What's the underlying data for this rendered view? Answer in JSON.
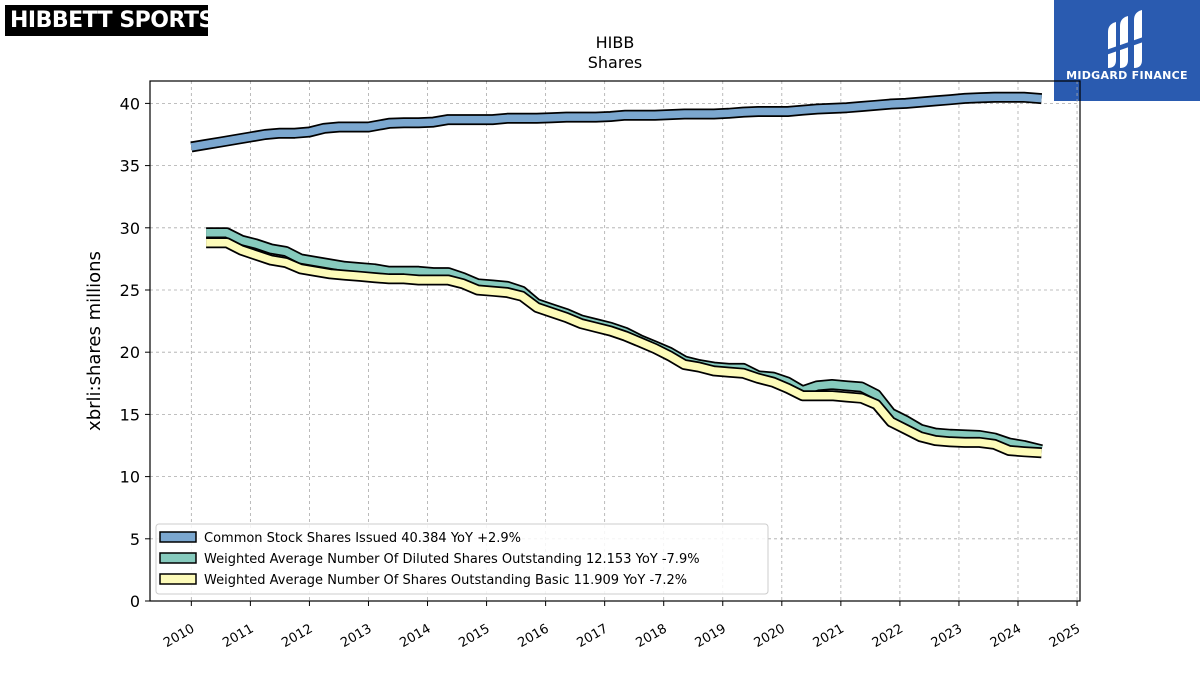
{
  "brand": {
    "name": "HIBBETT SPORTS",
    "mark": "®"
  },
  "finance_logo": {
    "name": "MIDGARD FINANCE"
  },
  "colors": {
    "common": "#7ba7cf",
    "diluted": "#86cabd",
    "basic": "#fdfbb9",
    "outline": "#000000",
    "grid": "#aaaaaa",
    "brand_bg": "#2a5bb0"
  },
  "chart_data": {
    "type": "line",
    "title": "HIBB",
    "subtitle": "Shares",
    "xlabel": "",
    "ylabel": "xbrli:shares millions",
    "xlim": [
      2009.3,
      2025.05
    ],
    "ylim": [
      0,
      41.8
    ],
    "xticks": [
      2010,
      2011,
      2012,
      2013,
      2014,
      2015,
      2016,
      2017,
      2018,
      2019,
      2020,
      2021,
      2022,
      2023,
      2024,
      2025
    ],
    "yticks": [
      0,
      5,
      10,
      15,
      20,
      25,
      30,
      35,
      40
    ],
    "grid": true,
    "legend_position": "lower-left",
    "series": [
      {
        "name": "Common Stock Shares Issued",
        "legend": "Common Stock Shares Issued  40.384 YoY +2.9%",
        "color": "#7ba7cf",
        "x": [
          2010.0,
          2010.25,
          2010.5,
          2010.75,
          2011.0,
          2011.25,
          2011.5,
          2011.75,
          2012.0,
          2012.25,
          2012.5,
          2012.75,
          2013.0,
          2013.35,
          2013.6,
          2013.85,
          2014.1,
          2014.35,
          2014.6,
          2014.85,
          2015.1,
          2015.35,
          2015.6,
          2015.85,
          2016.1,
          2016.35,
          2016.6,
          2016.85,
          2017.1,
          2017.35,
          2017.6,
          2017.85,
          2018.1,
          2018.35,
          2018.6,
          2018.85,
          2019.1,
          2019.35,
          2019.6,
          2019.85,
          2020.1,
          2020.35,
          2020.6,
          2020.85,
          2021.1,
          2021.35,
          2021.6,
          2021.85,
          2022.1,
          2022.35,
          2022.6,
          2022.85,
          2023.1,
          2023.35,
          2023.6,
          2023.85,
          2024.1,
          2024.4
        ],
        "values": [
          36.5,
          36.7,
          36.9,
          37.1,
          37.3,
          37.5,
          37.6,
          37.6,
          37.7,
          38.0,
          38.1,
          38.1,
          38.1,
          38.4,
          38.45,
          38.45,
          38.5,
          38.7,
          38.7,
          38.7,
          38.7,
          38.8,
          38.8,
          38.8,
          38.85,
          38.9,
          38.9,
          38.9,
          38.95,
          39.05,
          39.05,
          39.05,
          39.1,
          39.15,
          39.15,
          39.15,
          39.2,
          39.3,
          39.35,
          39.35,
          39.35,
          39.45,
          39.55,
          39.6,
          39.65,
          39.75,
          39.85,
          39.95,
          40.0,
          40.1,
          40.2,
          40.3,
          40.4,
          40.45,
          40.5,
          40.5,
          40.5,
          40.384
        ]
      },
      {
        "name": "Weighted Average Number Of Diluted Shares Outstanding",
        "legend": "Weighted Average Number Of Diluted Shares Outstanding  12.153 YoY -7.9%",
        "color": "#86cabd",
        "x": [
          2010.25,
          2010.6,
          2010.85,
          2011.1,
          2011.35,
          2011.6,
          2011.85,
          2012.1,
          2012.35,
          2012.6,
          2012.85,
          2013.1,
          2013.35,
          2013.6,
          2013.85,
          2014.1,
          2014.35,
          2014.6,
          2014.85,
          2015.1,
          2015.35,
          2015.6,
          2015.85,
          2016.1,
          2016.35,
          2016.6,
          2016.85,
          2017.1,
          2017.35,
          2017.6,
          2017.85,
          2018.1,
          2018.35,
          2018.6,
          2018.85,
          2019.1,
          2019.35,
          2019.6,
          2019.85,
          2020.1,
          2020.35,
          2020.6,
          2020.85,
          2021.1,
          2021.35,
          2021.6,
          2021.85,
          2022.1,
          2022.35,
          2022.6,
          2022.85,
          2023.1,
          2023.35,
          2023.6,
          2023.85,
          2024.1,
          2024.4
        ],
        "values": [
          29.6,
          29.6,
          29.0,
          28.7,
          28.3,
          28.1,
          27.5,
          27.3,
          27.1,
          26.9,
          26.8,
          26.7,
          26.5,
          26.5,
          26.5,
          26.4,
          26.4,
          26.0,
          25.5,
          25.4,
          25.3,
          24.9,
          23.9,
          23.5,
          23.1,
          22.6,
          22.3,
          22.0,
          21.6,
          21.0,
          20.5,
          20.0,
          19.3,
          19.0,
          18.8,
          18.7,
          18.7,
          18.1,
          18.0,
          17.6,
          16.9,
          17.3,
          17.4,
          17.3,
          17.2,
          16.6,
          15.1,
          14.5,
          13.8,
          13.5,
          13.4,
          13.35,
          13.3,
          13.1,
          12.7,
          12.5,
          12.153
        ]
      },
      {
        "name": "Weighted Average Number Of Shares Outstanding Basic",
        "legend": "Weighted Average Number Of Shares Outstanding Basic  11.909 YoY -7.2%",
        "color": "#fdfbb9",
        "x": [
          2010.25,
          2010.6,
          2010.85,
          2011.1,
          2011.35,
          2011.6,
          2011.85,
          2012.1,
          2012.35,
          2012.6,
          2012.85,
          2013.1,
          2013.35,
          2013.6,
          2013.85,
          2014.1,
          2014.35,
          2014.6,
          2014.85,
          2015.1,
          2015.35,
          2015.6,
          2015.85,
          2016.1,
          2016.35,
          2016.6,
          2016.85,
          2017.1,
          2017.35,
          2017.6,
          2017.85,
          2018.1,
          2018.35,
          2018.6,
          2018.85,
          2019.1,
          2019.35,
          2019.6,
          2019.85,
          2020.1,
          2020.35,
          2020.6,
          2020.85,
          2021.1,
          2021.35,
          2021.6,
          2021.85,
          2022.1,
          2022.35,
          2022.6,
          2022.85,
          2023.1,
          2023.35,
          2023.6,
          2023.85,
          2024.1,
          2024.4
        ],
        "values": [
          28.8,
          28.8,
          28.2,
          27.8,
          27.4,
          27.2,
          26.7,
          26.5,
          26.3,
          26.2,
          26.1,
          26.0,
          25.9,
          25.9,
          25.8,
          25.8,
          25.8,
          25.5,
          25.0,
          24.9,
          24.8,
          24.5,
          23.6,
          23.2,
          22.8,
          22.3,
          22.0,
          21.7,
          21.3,
          20.8,
          20.3,
          19.7,
          19.0,
          18.8,
          18.5,
          18.4,
          18.3,
          17.9,
          17.6,
          17.1,
          16.5,
          16.5,
          16.5,
          16.4,
          16.3,
          15.8,
          14.4,
          13.8,
          13.2,
          12.9,
          12.8,
          12.75,
          12.75,
          12.6,
          12.1,
          12.0,
          11.909
        ]
      }
    ]
  }
}
